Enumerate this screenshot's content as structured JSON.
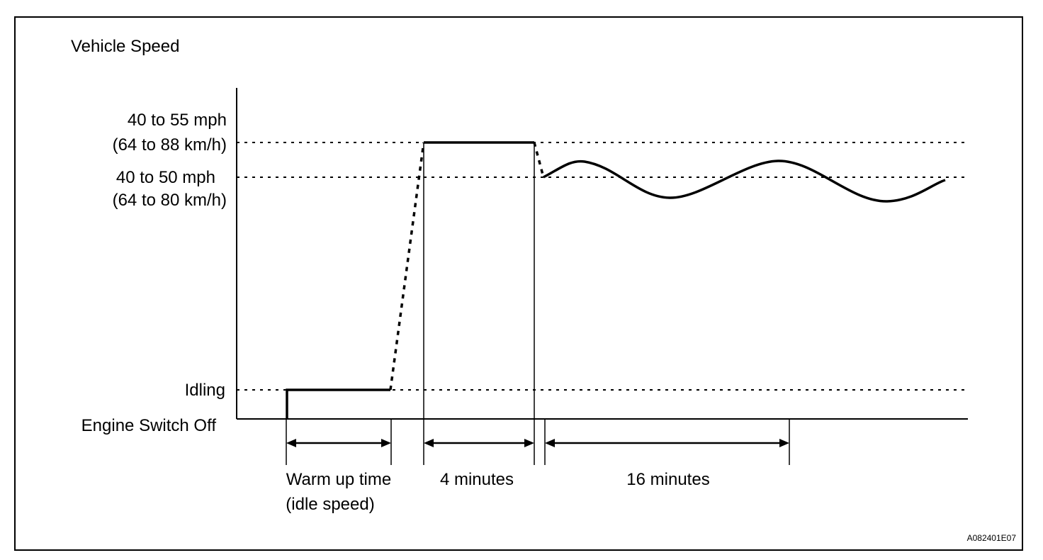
{
  "diagram": {
    "y_axis_title": "Vehicle Speed",
    "levels": {
      "upper_line1": "40 to 55 mph",
      "upper_line2": "(64 to 88 km/h)",
      "lower_line1": "40 to 50 mph",
      "lower_line2": "(64 to 80 km/h)",
      "idling": "Idling",
      "engine_off": "Engine Switch Off"
    },
    "durations": {
      "warmup_line1": "Warm up time",
      "warmup_line2": "(idle speed)",
      "four_minutes": "4 minutes",
      "sixteen_minutes": "16 minutes"
    },
    "figure_code": "A082401E07"
  }
}
